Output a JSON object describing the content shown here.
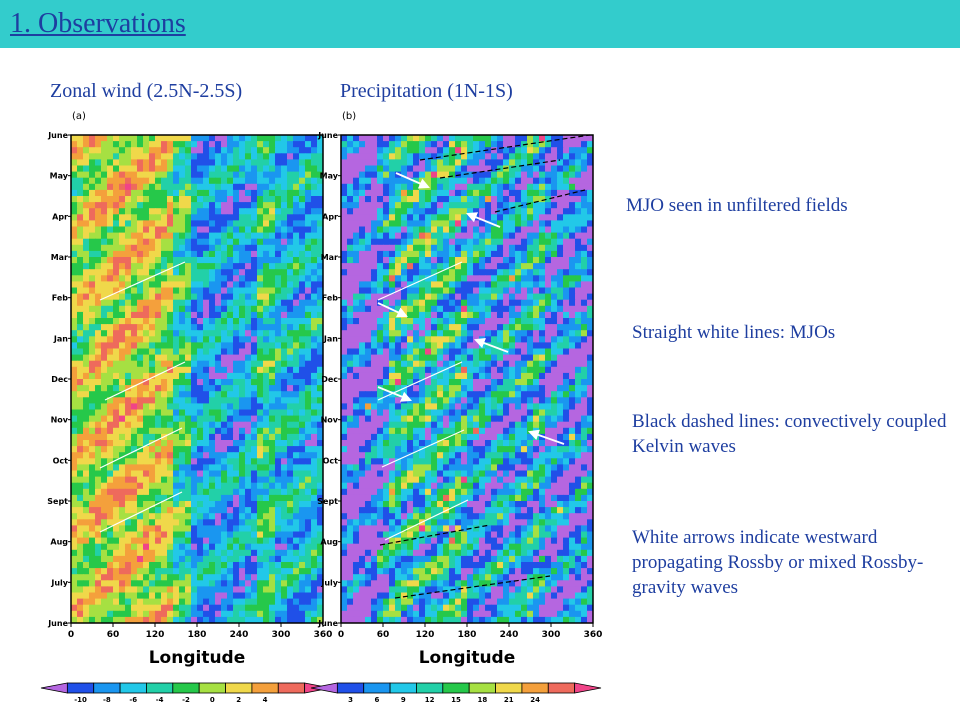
{
  "slide": {
    "title": "1. Observations",
    "notes": [
      "MJO seen in unfiltered fields",
      "Straight white lines: MJOs",
      "Black dashed lines: convectively coupled Kelvin waves",
      "White arrows indicate westward propagating Rossby or mixed Rossby-gravity waves"
    ]
  },
  "chart_data": [
    {
      "type": "heatmap",
      "panel_label": "(a)",
      "title": "Zonal wind (2.5N-2.5S)",
      "xlabel": "Longitude",
      "xticks": [
        "0",
        "60",
        "120",
        "180",
        "240",
        "300",
        "360"
      ],
      "xlim": [
        0,
        360
      ],
      "yticks": [
        "June",
        "July",
        "Aug",
        "Sept",
        "Oct",
        "Nov",
        "Dec",
        "Jan",
        "Feb",
        "Mar",
        "Apr",
        "May",
        "June"
      ],
      "colorbar": {
        "labels": [
          "-10",
          "-8",
          "-6",
          "-4",
          "-2",
          "0",
          "2",
          "4"
        ],
        "colors": [
          "#b566e0",
          "#2050e8",
          "#1a96f0",
          "#22c8e8",
          "#22d0a8",
          "#26c84a",
          "#a6e042",
          "#f0d84a",
          "#f4a03c",
          "#ee6a5c",
          "#f04488"
        ]
      }
    },
    {
      "type": "heatmap",
      "panel_label": "(b)",
      "title": "Precipitation (1N-1S)",
      "xlabel": "Longitude",
      "xticks": [
        "0",
        "60",
        "120",
        "180",
        "240",
        "300",
        "360"
      ],
      "xlim": [
        0,
        360
      ],
      "yticks": [
        "June",
        "July",
        "Aug",
        "Sept",
        "Oct",
        "Nov",
        "Dec",
        "Jan",
        "Feb",
        "Mar",
        "Apr",
        "May",
        "June"
      ],
      "colorbar": {
        "labels": [
          "3",
          "6",
          "9",
          "12",
          "15",
          "18",
          "21",
          "24"
        ],
        "colors": [
          "#b566e0",
          "#2050e8",
          "#1a96f0",
          "#22c8e8",
          "#22d0a8",
          "#26c84a",
          "#a6e042",
          "#f0d84a",
          "#f4a03c",
          "#ee6a5c",
          "#f04488"
        ]
      }
    }
  ]
}
